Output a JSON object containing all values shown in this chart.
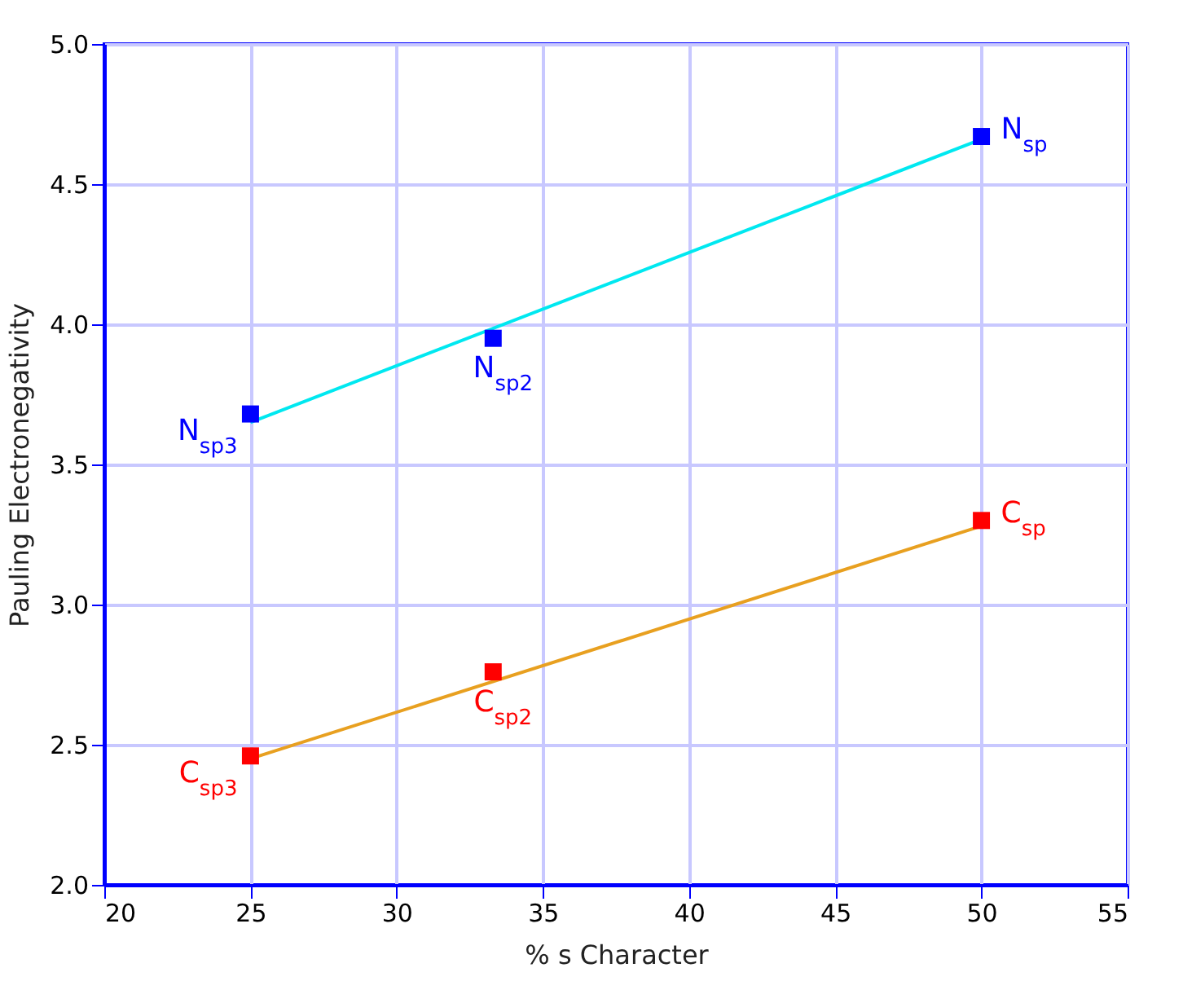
{
  "chart_data": {
    "type": "scatter",
    "xlabel": "% s Character",
    "ylabel": "Pauling Electronegativity",
    "xlim": [
      20,
      55
    ],
    "xticks": [
      20,
      25,
      30,
      35,
      40,
      45,
      50,
      55
    ],
    "ylim": [
      2.0,
      5.0
    ],
    "yticks": [
      {
        "value": 2.0,
        "label": "2.0"
      },
      {
        "value": 2.5,
        "label": "2.5"
      },
      {
        "value": 3.0,
        "label": "3.0"
      },
      {
        "value": 3.5,
        "label": "3.5"
      },
      {
        "value": 4.0,
        "label": "4.0"
      },
      {
        "value": 4.5,
        "label": "4.5"
      },
      {
        "value": 5.0,
        "label": "5.0"
      }
    ],
    "grid": true,
    "marker": "square",
    "series": [
      {
        "type": "line",
        "color": "#00e8f0",
        "x": [
          25,
          50
        ],
        "values": [
          3.65,
          4.66
        ],
        "marker": "none"
      },
      {
        "type": "line",
        "color": "#e8a020",
        "x": [
          25,
          50
        ],
        "values": [
          2.45,
          3.28
        ],
        "marker": "none"
      },
      {
        "color": "#0000ff",
        "x": [
          25,
          33.3,
          50
        ],
        "values": [
          3.68,
          3.95,
          4.67
        ]
      },
      {
        "color": "#ff0000",
        "x": [
          25,
          33.3,
          50
        ],
        "values": [
          2.46,
          2.76,
          3.3
        ]
      }
    ],
    "annotations": [
      {
        "text": "N$_{sp3}$",
        "x": 25,
        "y": 3.68
      },
      {
        "text": "N$_{sp2}$",
        "x": 33.3,
        "y": 3.95
      },
      {
        "text": "N$_{sp}$",
        "x": 50,
        "y": 4.67
      },
      {
        "text": "C$_{sp3}$",
        "x": 25,
        "y": 2.46
      },
      {
        "text": "C$_{sp2}$",
        "x": 33.3,
        "y": 2.76
      },
      {
        "text": "C$_{sp}$",
        "x": 50,
        "y": 3.3
      }
    ]
  }
}
